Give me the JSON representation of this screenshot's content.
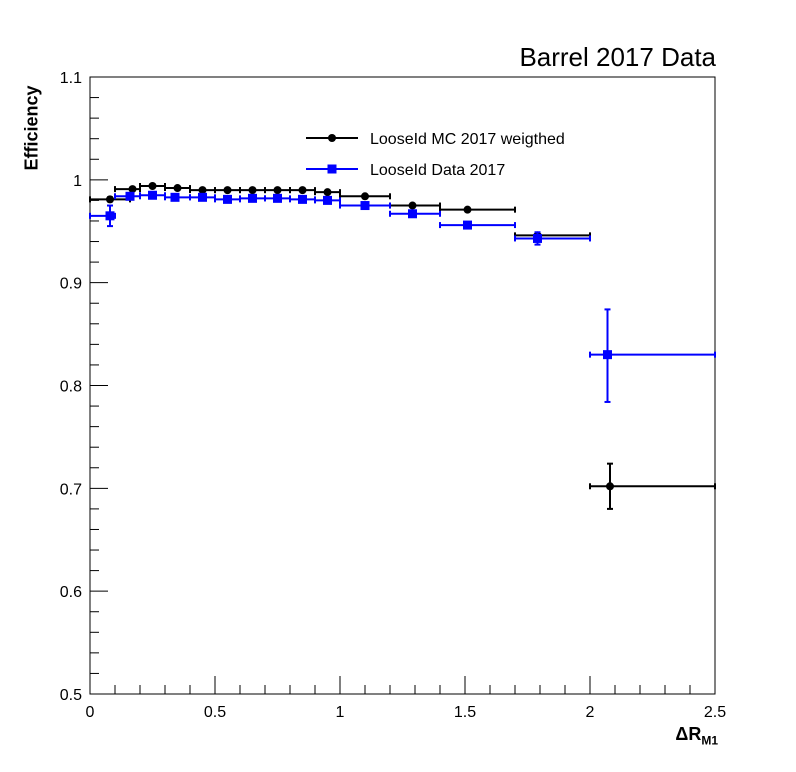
{
  "chart_data": {
    "type": "scatter",
    "title": "Barrel 2017 Data",
    "ylabel": "Efficiency",
    "xlabel_main": "ΔR",
    "xlabel_sub": "M1",
    "xlim": [
      0,
      2.5
    ],
    "ylim": [
      0.5,
      1.1
    ],
    "xticks": [
      "0",
      "0.5",
      "1",
      "1.5",
      "2",
      "2.5"
    ],
    "yticks": [
      "0.5",
      "0.6",
      "0.7",
      "0.8",
      "0.9",
      "1",
      "1.1"
    ],
    "legend_position": "top-center",
    "series": [
      {
        "name": "LooseId MC 2017 weigthed",
        "color": "#000000",
        "marker": "circle",
        "points": [
          {
            "x": 0.08,
            "xlo": 0.0,
            "xhi": 0.16,
            "y": 0.981,
            "ylo": 0.979,
            "yhi": 0.983
          },
          {
            "x": 0.17,
            "xlo": 0.1,
            "xhi": 0.2,
            "y": 0.991,
            "ylo": 0.99,
            "yhi": 0.992
          },
          {
            "x": 0.25,
            "xlo": 0.2,
            "xhi": 0.3,
            "y": 0.994,
            "ylo": 0.993,
            "yhi": 0.995
          },
          {
            "x": 0.35,
            "xlo": 0.3,
            "xhi": 0.4,
            "y": 0.992,
            "ylo": 0.991,
            "yhi": 0.993
          },
          {
            "x": 0.45,
            "xlo": 0.4,
            "xhi": 0.5,
            "y": 0.99,
            "ylo": 0.989,
            "yhi": 0.991
          },
          {
            "x": 0.55,
            "xlo": 0.5,
            "xhi": 0.6,
            "y": 0.99,
            "ylo": 0.989,
            "yhi": 0.991
          },
          {
            "x": 0.65,
            "xlo": 0.6,
            "xhi": 0.7,
            "y": 0.99,
            "ylo": 0.989,
            "yhi": 0.991
          },
          {
            "x": 0.75,
            "xlo": 0.7,
            "xhi": 0.8,
            "y": 0.99,
            "ylo": 0.989,
            "yhi": 0.991
          },
          {
            "x": 0.85,
            "xlo": 0.8,
            "xhi": 0.9,
            "y": 0.99,
            "ylo": 0.989,
            "yhi": 0.991
          },
          {
            "x": 0.95,
            "xlo": 0.9,
            "xhi": 1.0,
            "y": 0.988,
            "ylo": 0.987,
            "yhi": 0.989
          },
          {
            "x": 1.1,
            "xlo": 1.0,
            "xhi": 1.2,
            "y": 0.984,
            "ylo": 0.983,
            "yhi": 0.985
          },
          {
            "x": 1.29,
            "xlo": 1.2,
            "xhi": 1.4,
            "y": 0.975,
            "ylo": 0.974,
            "yhi": 0.976
          },
          {
            "x": 1.51,
            "xlo": 1.4,
            "xhi": 1.7,
            "y": 0.971,
            "ylo": 0.97,
            "yhi": 0.972
          },
          {
            "x": 1.79,
            "xlo": 1.7,
            "xhi": 2.0,
            "y": 0.946,
            "ylo": 0.944,
            "yhi": 0.948
          },
          {
            "x": 2.08,
            "xlo": 2.0,
            "xhi": 2.5,
            "y": 0.702,
            "ylo": 0.68,
            "yhi": 0.724
          }
        ]
      },
      {
        "name": "LooseId Data 2017",
        "color": "#0000ff",
        "marker": "square",
        "points": [
          {
            "x": 0.08,
            "xlo": 0.0,
            "xhi": 0.1,
            "y": 0.965,
            "ylo": 0.955,
            "yhi": 0.975
          },
          {
            "x": 0.16,
            "xlo": 0.1,
            "xhi": 0.2,
            "y": 0.984,
            "ylo": 0.982,
            "yhi": 0.986
          },
          {
            "x": 0.25,
            "xlo": 0.2,
            "xhi": 0.3,
            "y": 0.985,
            "ylo": 0.983,
            "yhi": 0.987
          },
          {
            "x": 0.34,
            "xlo": 0.3,
            "xhi": 0.4,
            "y": 0.983,
            "ylo": 0.981,
            "yhi": 0.985
          },
          {
            "x": 0.45,
            "xlo": 0.4,
            "xhi": 0.5,
            "y": 0.983,
            "ylo": 0.981,
            "yhi": 0.985
          },
          {
            "x": 0.55,
            "xlo": 0.5,
            "xhi": 0.6,
            "y": 0.981,
            "ylo": 0.979,
            "yhi": 0.983
          },
          {
            "x": 0.65,
            "xlo": 0.6,
            "xhi": 0.7,
            "y": 0.982,
            "ylo": 0.98,
            "yhi": 0.984
          },
          {
            "x": 0.75,
            "xlo": 0.7,
            "xhi": 0.8,
            "y": 0.982,
            "ylo": 0.98,
            "yhi": 0.984
          },
          {
            "x": 0.85,
            "xlo": 0.8,
            "xhi": 0.9,
            "y": 0.981,
            "ylo": 0.979,
            "yhi": 0.983
          },
          {
            "x": 0.95,
            "xlo": 0.9,
            "xhi": 1.0,
            "y": 0.98,
            "ylo": 0.978,
            "yhi": 0.982
          },
          {
            "x": 1.1,
            "xlo": 1.0,
            "xhi": 1.2,
            "y": 0.975,
            "ylo": 0.973,
            "yhi": 0.977
          },
          {
            "x": 1.29,
            "xlo": 1.2,
            "xhi": 1.4,
            "y": 0.967,
            "ylo": 0.965,
            "yhi": 0.969
          },
          {
            "x": 1.51,
            "xlo": 1.4,
            "xhi": 1.7,
            "y": 0.956,
            "ylo": 0.954,
            "yhi": 0.958
          },
          {
            "x": 1.79,
            "xlo": 1.7,
            "xhi": 2.0,
            "y": 0.943,
            "ylo": 0.937,
            "yhi": 0.949
          },
          {
            "x": 2.07,
            "xlo": 2.0,
            "xhi": 2.5,
            "y": 0.83,
            "ylo": 0.784,
            "yhi": 0.874
          }
        ]
      }
    ]
  }
}
